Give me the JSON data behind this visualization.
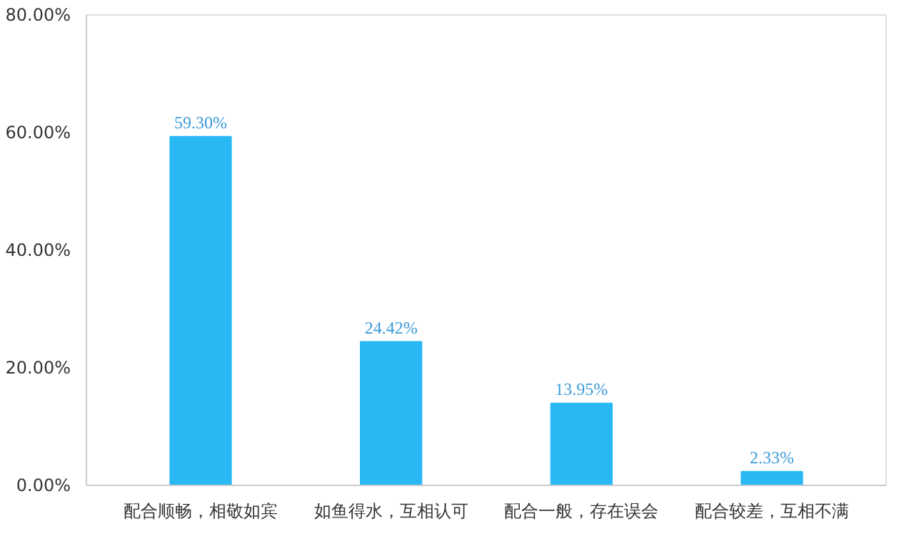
{
  "chart_data": {
    "type": "bar",
    "categories": [
      "配合顺畅，相敬如宾",
      "如鱼得水，互相认可",
      "配合一般，存在误会",
      "配合较差，互相不满"
    ],
    "values": [
      59.3,
      24.42,
      13.95,
      2.33
    ],
    "value_labels": [
      "59.30%",
      "24.42%",
      "13.95%",
      "2.33%"
    ],
    "color": "#2ab8f5",
    "ylim": [
      0,
      80
    ],
    "yticks": [
      {
        "value": 0,
        "label": "0.00%"
      },
      {
        "value": 20,
        "label": "20.00%"
      },
      {
        "value": 40,
        "label": "40.00%"
      },
      {
        "value": 60,
        "label": "60.00%"
      },
      {
        "value": 80,
        "label": "80.00%"
      }
    ],
    "grid": false
  }
}
